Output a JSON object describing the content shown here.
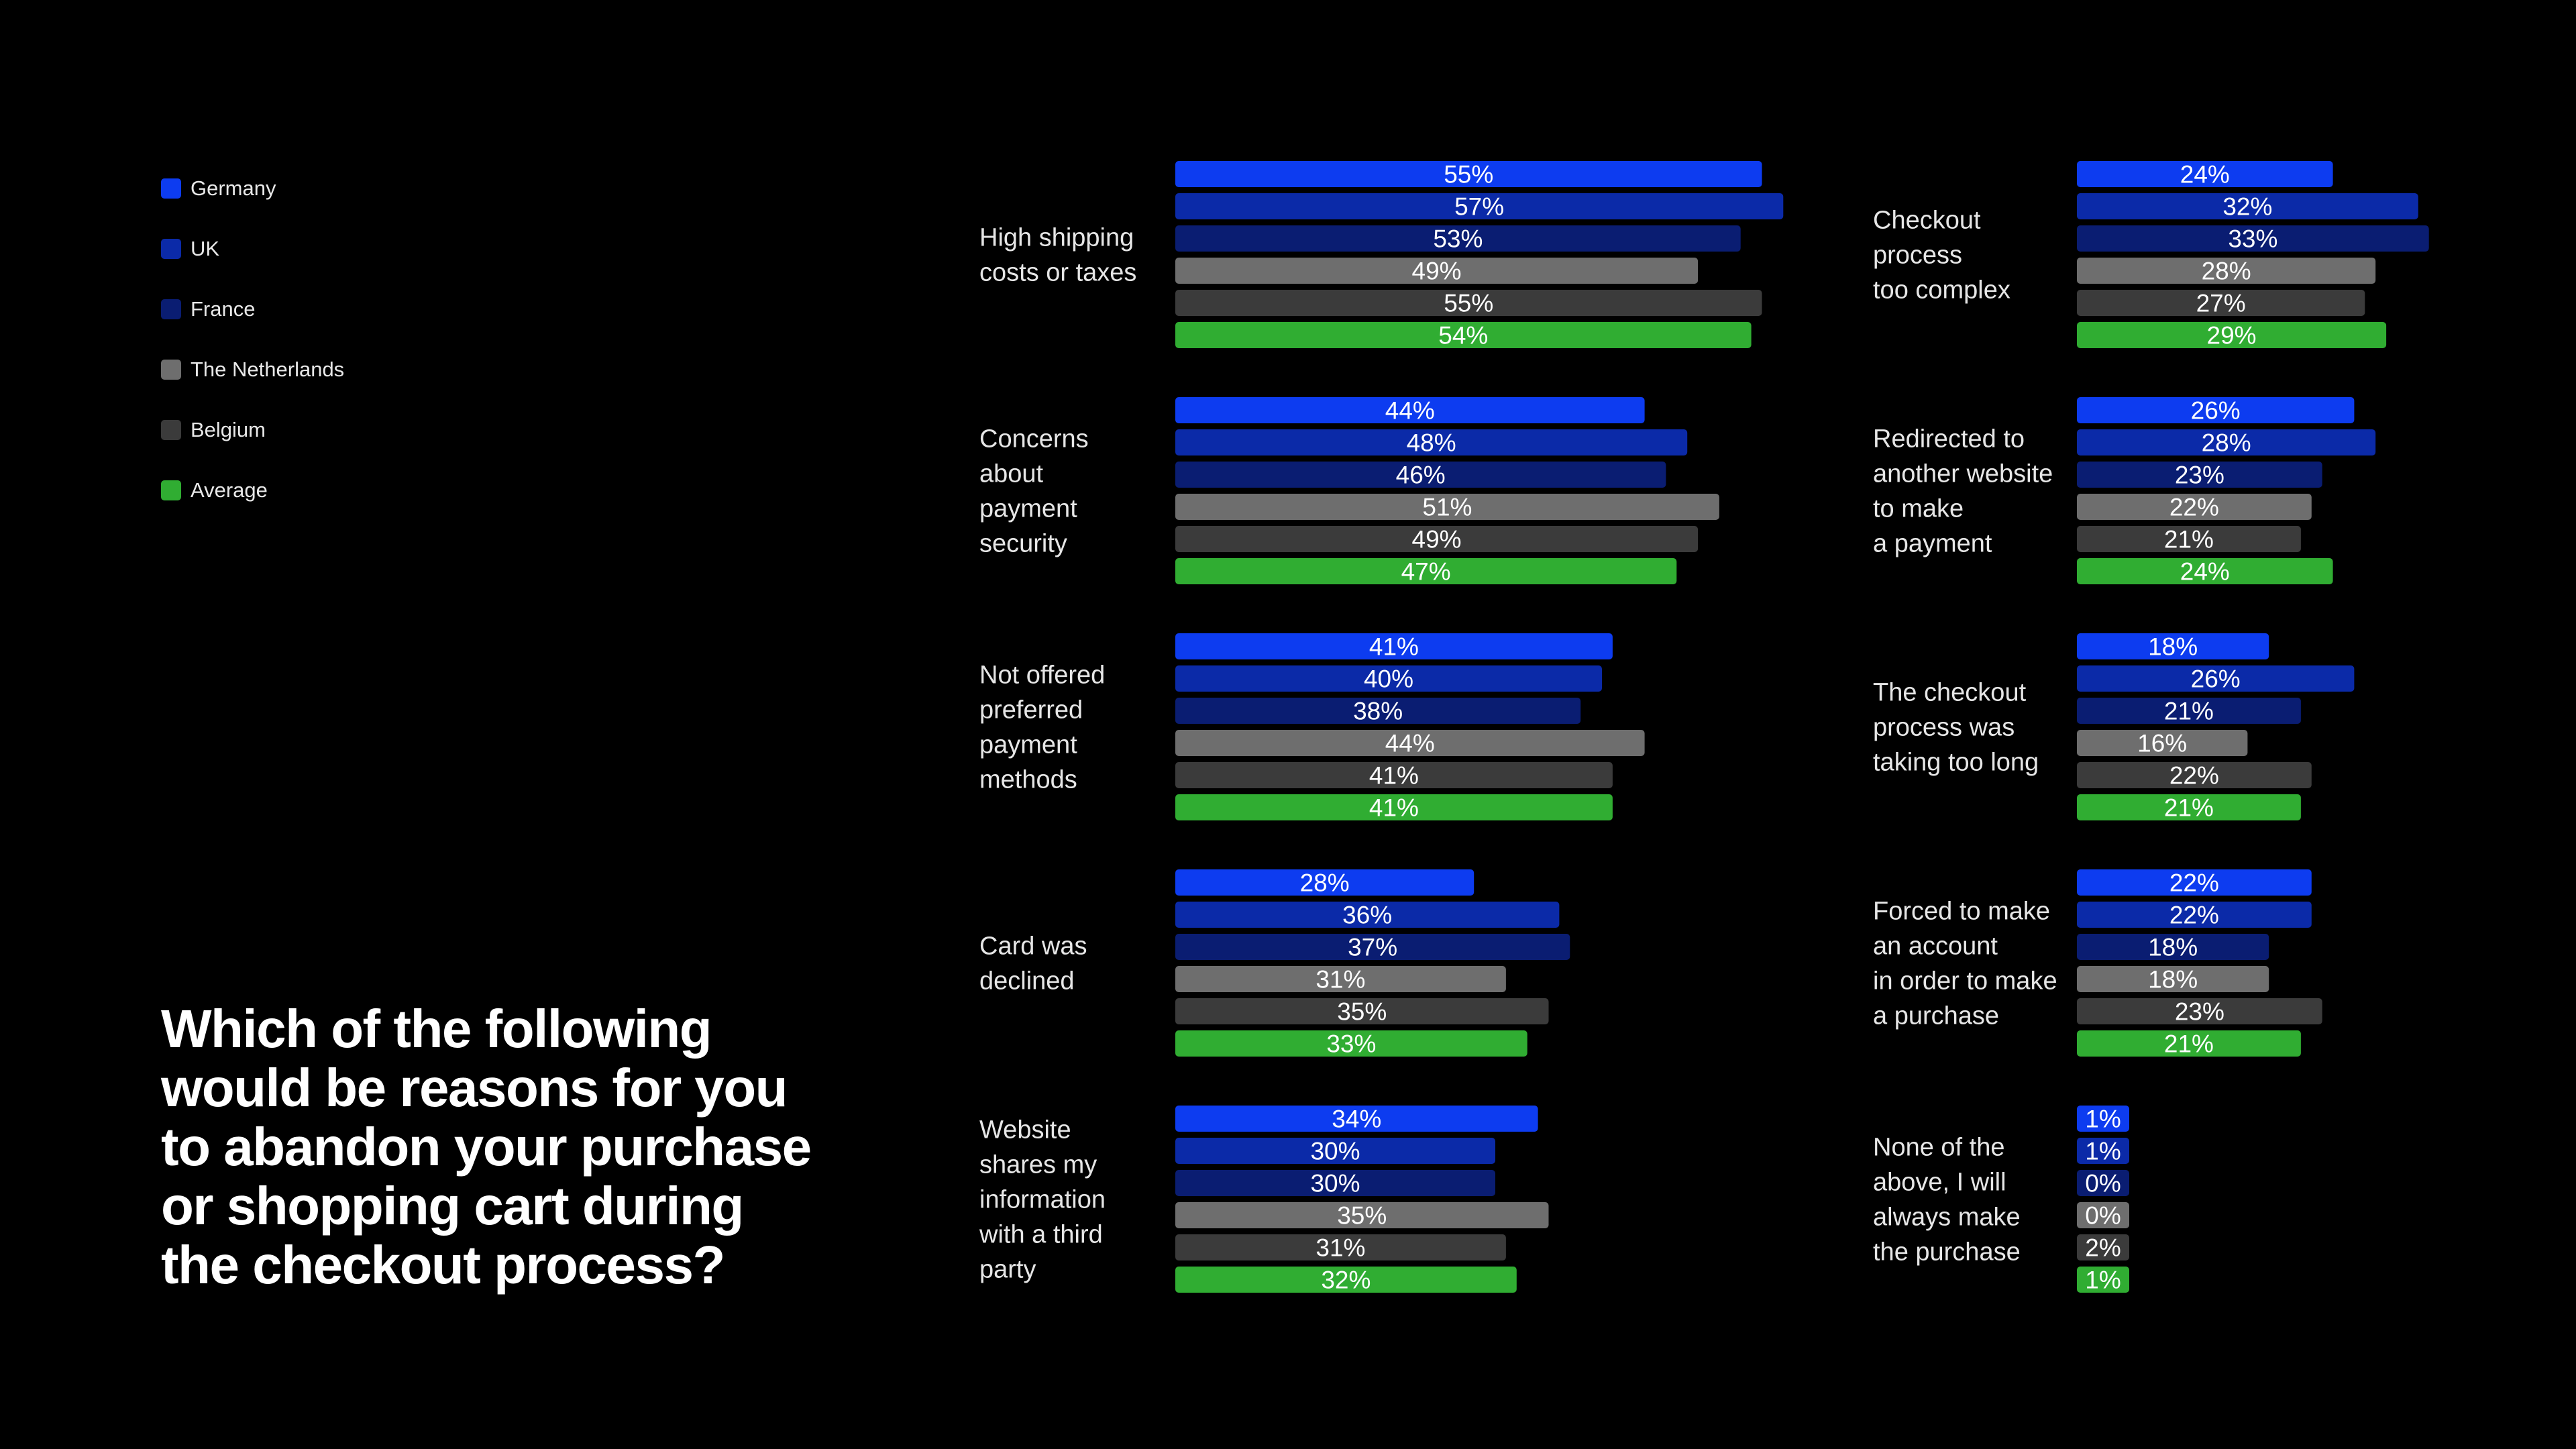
{
  "question": "Which of the following\nwould be reasons for you\nto abandon your purchase\nor shopping cart during\nthe checkout process?",
  "legend": [
    {
      "label": "Germany",
      "color": "#0d3cf0"
    },
    {
      "label": "UK",
      "color": "#0b2aa8"
    },
    {
      "label": "France",
      "color": "#0a1d72"
    },
    {
      "label": "The Netherlands",
      "color": "#6e6e6e"
    },
    {
      "label": "Belgium",
      "color": "#3b3b3b"
    },
    {
      "label": "Average",
      "color": "#30ad32"
    }
  ],
  "chart_data": {
    "type": "bar",
    "orientation": "horizontal",
    "unit": "%",
    "series_names": [
      "Germany",
      "UK",
      "France",
      "The Netherlands",
      "Belgium",
      "Average"
    ],
    "groups": [
      {
        "label": [
          "High shipping",
          "costs or taxes"
        ],
        "values": [
          55,
          57,
          53,
          49,
          55,
          54
        ]
      },
      {
        "label": [
          "Concerns",
          "about",
          "payment",
          "security"
        ],
        "values": [
          44,
          48,
          46,
          51,
          49,
          47
        ]
      },
      {
        "label": [
          "Not offered",
          "preferred",
          "payment",
          "methods"
        ],
        "values": [
          41,
          40,
          38,
          44,
          41,
          41
        ]
      },
      {
        "label": [
          "Card was",
          "declined"
        ],
        "values": [
          28,
          36,
          37,
          31,
          35,
          33
        ]
      },
      {
        "label": [
          "Website",
          "shares my",
          "information",
          "with a third",
          "party"
        ],
        "values": [
          34,
          30,
          30,
          35,
          31,
          32
        ]
      },
      {
        "label": [
          "Checkout",
          "process",
          "too complex"
        ],
        "values": [
          24,
          32,
          33,
          28,
          27,
          29
        ]
      },
      {
        "label": [
          "Redirected to",
          "another website",
          "to make",
          "a payment"
        ],
        "values": [
          26,
          28,
          23,
          22,
          21,
          24
        ]
      },
      {
        "label": [
          "The checkout",
          "process was",
          "taking too long"
        ],
        "values": [
          18,
          26,
          21,
          16,
          22,
          21
        ]
      },
      {
        "label": [
          "Forced to make",
          "an account",
          "in order to make",
          "a purchase"
        ],
        "values": [
          22,
          22,
          18,
          18,
          23,
          21
        ]
      },
      {
        "label": [
          "None of the",
          "above, I will",
          "always make",
          "the purchase"
        ],
        "values": [
          1,
          1,
          0,
          0,
          2,
          1
        ]
      }
    ]
  }
}
